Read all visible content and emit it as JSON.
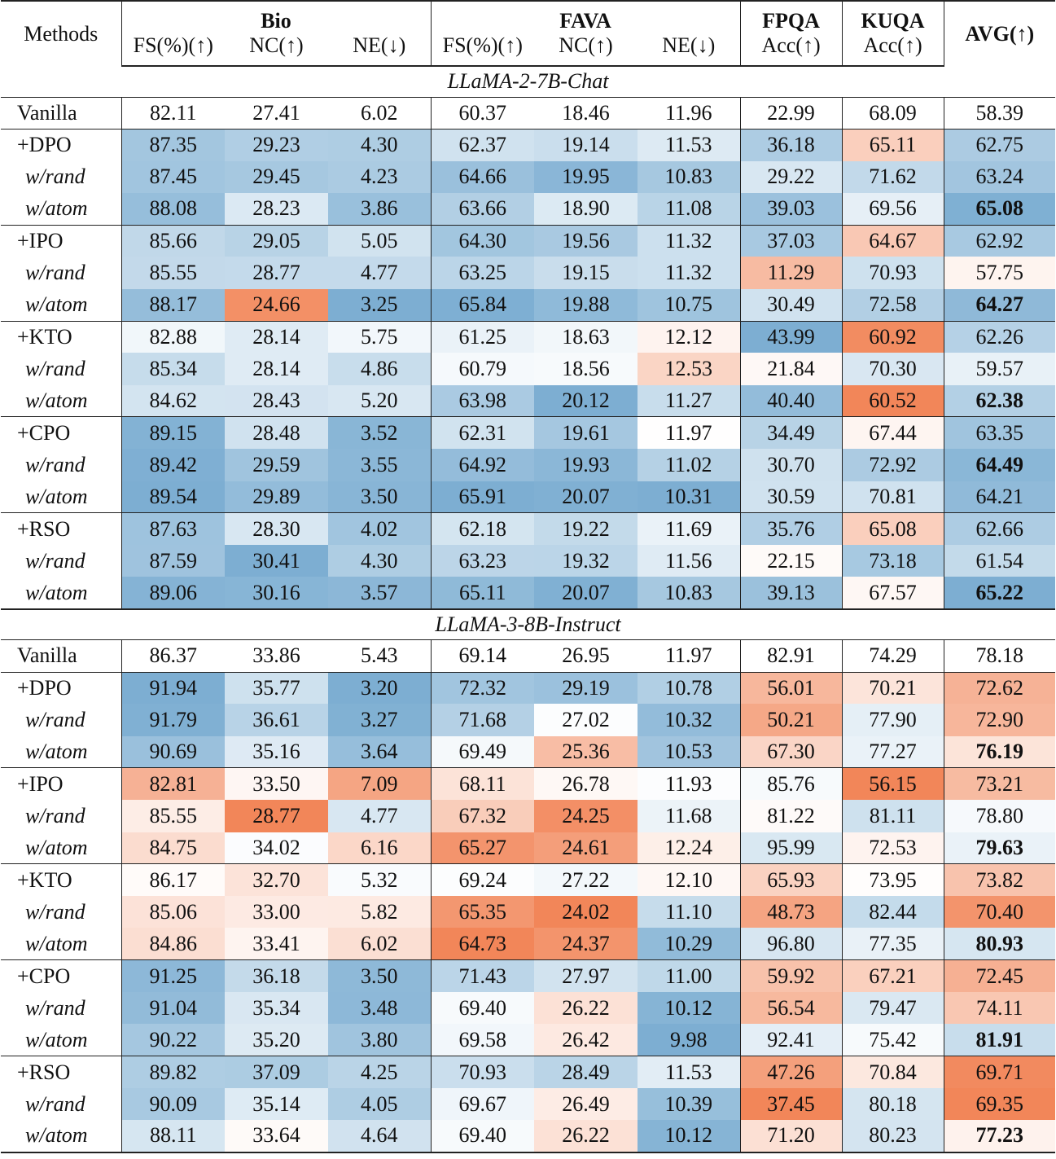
{
  "table": {
    "header": {
      "method": "Methods",
      "groups": [
        {
          "name": "Bio",
          "metrics": [
            {
              "label": "FS(%)(↑)"
            },
            {
              "label": "NC(↑)"
            },
            {
              "label": "NE(↓)",
              "lower_is_better": true
            }
          ]
        },
        {
          "name": "FAVA",
          "metrics": [
            {
              "label": "FS(%)(↑)"
            },
            {
              "label": "NC(↑)"
            },
            {
              "label": "NE(↓)",
              "lower_is_better": true
            }
          ]
        },
        {
          "name": "FPQA",
          "metrics": [
            {
              "label": "Acc(↑)"
            }
          ]
        },
        {
          "name": "KUQA",
          "metrics": [
            {
              "label": "Acc(↑)"
            }
          ]
        }
      ],
      "avg": "AVG(↑)"
    },
    "sections": [
      {
        "title": "LLaMA-2-7B-Chat",
        "baseline": {
          "method": "Vanilla",
          "values": [
            "82.11",
            "27.41",
            "6.02",
            "60.37",
            "18.46",
            "11.96",
            "22.99",
            "68.09",
            "58.39"
          ]
        },
        "groups": [
          [
            {
              "method": "+DPO",
              "values": [
                "87.35",
                "29.23",
                "4.30",
                "62.37",
                "19.14",
                "11.53",
                "36.18",
                "65.11",
                "62.75"
              ]
            },
            {
              "method": "w/rand",
              "values": [
                "87.45",
                "29.45",
                "4.23",
                "64.66",
                "19.95",
                "10.83",
                "29.22",
                "71.62",
                "63.24"
              ]
            },
            {
              "method": "w/atom",
              "values": [
                "88.08",
                "28.23",
                "3.86",
                "63.66",
                "18.90",
                "11.08",
                "39.03",
                "69.56",
                "65.08"
              ]
            }
          ],
          [
            {
              "method": "+IPO",
              "values": [
                "85.66",
                "29.05",
                "5.05",
                "64.30",
                "19.56",
                "11.32",
                "37.03",
                "64.67",
                "62.92"
              ]
            },
            {
              "method": "w/rand",
              "values": [
                "85.55",
                "28.77",
                "4.77",
                "63.25",
                "19.15",
                "11.32",
                "11.29",
                "70.93",
                "57.75"
              ]
            },
            {
              "method": "w/atom",
              "values": [
                "88.17",
                "24.66",
                "3.25",
                "65.84",
                "19.88",
                "10.75",
                "30.49",
                "72.58",
                "64.27"
              ]
            }
          ],
          [
            {
              "method": "+KTO",
              "values": [
                "82.88",
                "28.14",
                "5.75",
                "61.25",
                "18.63",
                "12.12",
                "43.99",
                "60.92",
                "62.26"
              ]
            },
            {
              "method": "w/rand",
              "values": [
                "85.34",
                "28.14",
                "4.86",
                "60.79",
                "18.56",
                "12.53",
                "21.84",
                "70.30",
                "59.57"
              ]
            },
            {
              "method": "w/atom",
              "values": [
                "84.62",
                "28.43",
                "5.20",
                "63.98",
                "20.12",
                "11.27",
                "40.40",
                "60.52",
                "62.38"
              ]
            }
          ],
          [
            {
              "method": "+CPO",
              "values": [
                "89.15",
                "28.48",
                "3.52",
                "62.31",
                "19.61",
                "11.97",
                "34.49",
                "67.44",
                "63.35"
              ]
            },
            {
              "method": "w/rand",
              "values": [
                "89.42",
                "29.59",
                "3.55",
                "64.92",
                "19.93",
                "11.02",
                "30.70",
                "72.92",
                "64.49"
              ]
            },
            {
              "method": "w/atom",
              "values": [
                "89.54",
                "29.89",
                "3.50",
                "65.91",
                "20.07",
                "10.31",
                "30.59",
                "70.81",
                "64.21"
              ]
            }
          ],
          [
            {
              "method": "+RSO",
              "values": [
                "87.63",
                "28.30",
                "4.02",
                "62.18",
                "19.22",
                "11.69",
                "35.76",
                "65.08",
                "62.66"
              ]
            },
            {
              "method": "w/rand",
              "values": [
                "87.59",
                "30.41",
                "4.30",
                "63.23",
                "19.32",
                "11.56",
                "22.15",
                "73.18",
                "61.54"
              ]
            },
            {
              "method": "w/atom",
              "values": [
                "89.06",
                "30.16",
                "3.57",
                "65.11",
                "20.07",
                "10.83",
                "39.13",
                "67.57",
                "65.22"
              ]
            }
          ]
        ]
      },
      {
        "title": "LLaMA-3-8B-Instruct",
        "baseline": {
          "method": "Vanilla",
          "values": [
            "86.37",
            "33.86",
            "5.43",
            "69.14",
            "26.95",
            "11.97",
            "82.91",
            "74.29",
            "78.18"
          ]
        },
        "groups": [
          [
            {
              "method": "+DPO",
              "values": [
                "91.94",
                "35.77",
                "3.20",
                "72.32",
                "29.19",
                "10.78",
                "56.01",
                "70.21",
                "72.62"
              ]
            },
            {
              "method": "w/rand",
              "values": [
                "91.79",
                "36.61",
                "3.27",
                "71.68",
                "27.02",
                "10.32",
                "50.21",
                "77.90",
                "72.90"
              ]
            },
            {
              "method": "w/atom",
              "values": [
                "90.69",
                "35.16",
                "3.64",
                "69.49",
                "25.36",
                "10.53",
                "67.30",
                "77.27",
                "76.19"
              ]
            }
          ],
          [
            {
              "method": "+IPO",
              "values": [
                "82.81",
                "33.50",
                "7.09",
                "68.11",
                "26.78",
                "11.93",
                "85.76",
                "56.15",
                "73.21"
              ]
            },
            {
              "method": "w/rand",
              "values": [
                "85.55",
                "28.77",
                "4.77",
                "67.32",
                "24.25",
                "11.68",
                "81.22",
                "81.11",
                "78.80"
              ]
            },
            {
              "method": "w/atom",
              "values": [
                "84.75",
                "34.02",
                "6.16",
                "65.27",
                "24.61",
                "12.24",
                "95.99",
                "72.53",
                "79.63"
              ]
            }
          ],
          [
            {
              "method": "+KTO",
              "values": [
                "86.17",
                "32.70",
                "5.32",
                "69.24",
                "27.22",
                "12.10",
                "65.93",
                "73.95",
                "73.82"
              ]
            },
            {
              "method": "w/rand",
              "values": [
                "85.06",
                "33.00",
                "5.82",
                "65.35",
                "24.02",
                "11.10",
                "48.73",
                "82.44",
                "70.40"
              ]
            },
            {
              "method": "w/atom",
              "values": [
                "84.86",
                "33.41",
                "6.02",
                "64.73",
                "24.37",
                "10.29",
                "96.80",
                "77.35",
                "80.93"
              ]
            }
          ],
          [
            {
              "method": "+CPO",
              "values": [
                "91.25",
                "36.18",
                "3.50",
                "71.43",
                "27.97",
                "11.00",
                "59.92",
                "67.21",
                "72.45"
              ]
            },
            {
              "method": "w/rand",
              "values": [
                "91.04",
                "35.34",
                "3.48",
                "69.40",
                "26.22",
                "10.12",
                "56.54",
                "79.47",
                "74.11"
              ]
            },
            {
              "method": "w/atom",
              "values": [
                "90.22",
                "35.20",
                "3.80",
                "69.58",
                "26.42",
                "9.98",
                "92.41",
                "75.42",
                "81.91"
              ]
            }
          ],
          [
            {
              "method": "+RSO",
              "values": [
                "89.82",
                "37.09",
                "4.25",
                "70.93",
                "28.49",
                "11.53",
                "47.26",
                "70.84",
                "69.71"
              ]
            },
            {
              "method": "w/rand",
              "values": [
                "90.09",
                "35.14",
                "4.05",
                "69.67",
                "26.49",
                "10.39",
                "37.45",
                "80.18",
                "69.35"
              ]
            },
            {
              "method": "w/atom",
              "values": [
                "88.11",
                "33.64",
                "4.64",
                "69.40",
                "26.22",
                "10.12",
                "71.20",
                "80.23",
                "77.23"
              ]
            }
          ]
        ]
      }
    ]
  }
}
